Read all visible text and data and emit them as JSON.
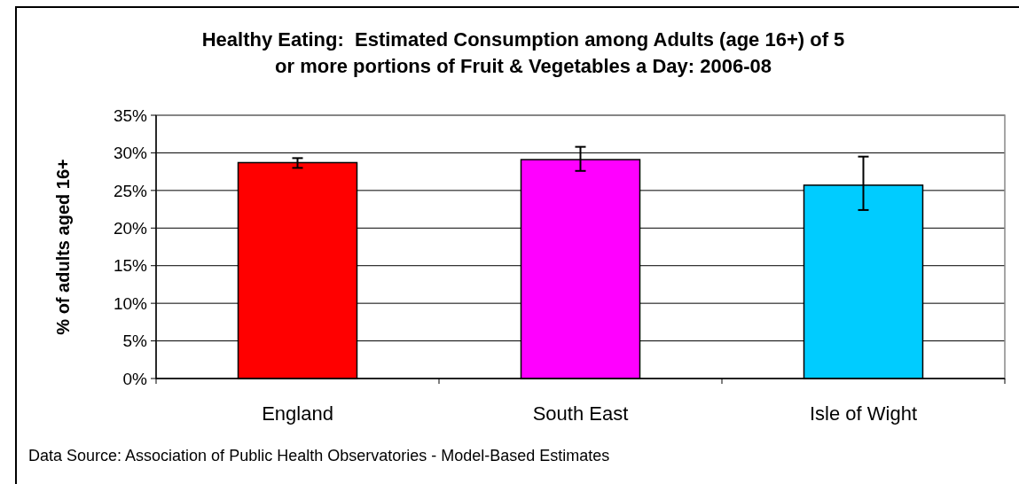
{
  "chart_data": {
    "type": "bar",
    "title": "Healthy Eating:  Estimated Consumption among Adults (age 16+) of 5 or more portions of Fruit & Vegetables a Day: 2006-08",
    "ylabel": "% of adults aged 16+",
    "categories": [
      "England",
      "South East",
      "Isle of Wight"
    ],
    "values": [
      28.7,
      29.1,
      25.7
    ],
    "colors": [
      "#ff0000",
      "#ff00ff",
      "#00ccff"
    ],
    "errors": [
      [
        28.0,
        29.3
      ],
      [
        27.6,
        30.8
      ],
      [
        22.4,
        29.5
      ]
    ],
    "ylim": [
      0,
      35
    ],
    "yticks": [
      {
        "value": 0,
        "label": "0%"
      },
      {
        "value": 5,
        "label": "5%"
      },
      {
        "value": 10,
        "label": "10%"
      },
      {
        "value": 15,
        "label": "15%"
      },
      {
        "value": 20,
        "label": "20%"
      },
      {
        "value": 25,
        "label": "25%"
      },
      {
        "value": 30,
        "label": "30%"
      },
      {
        "value": 35,
        "label": "35%"
      }
    ],
    "grid": "y",
    "annotations": [
      "Data Source: Association of Public Health Observatories - Model-Based Estimates"
    ]
  }
}
